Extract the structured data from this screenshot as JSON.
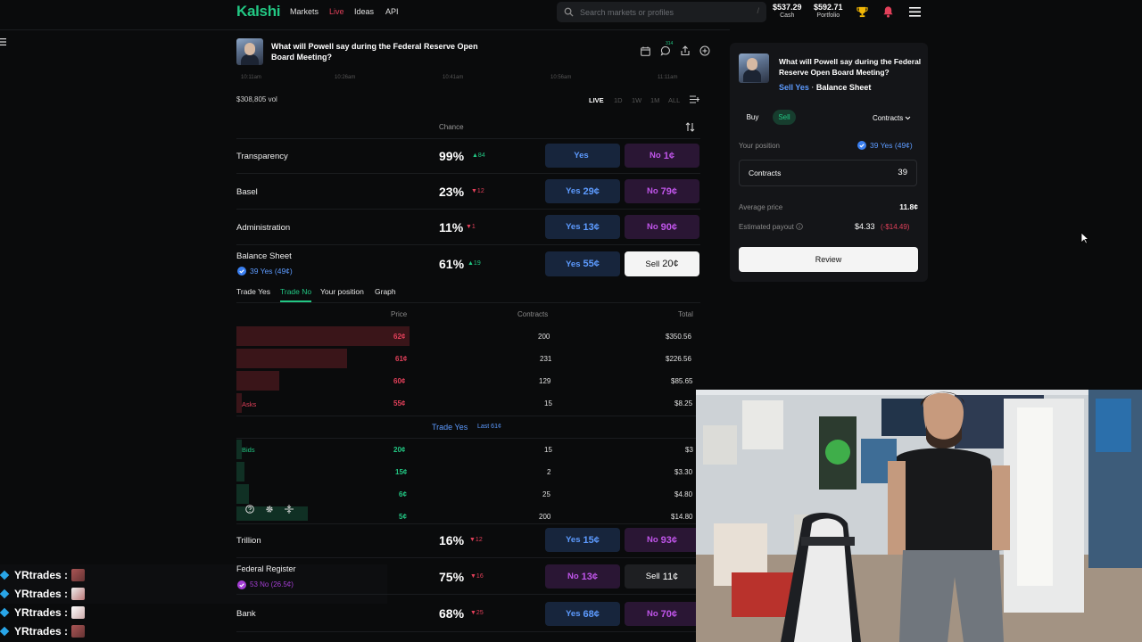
{
  "nav": {
    "logo": "Kalshi",
    "links": [
      {
        "label": "Markets"
      },
      {
        "label": "Live"
      },
      {
        "label": "Ideas"
      },
      {
        "label": "API"
      }
    ],
    "search_placeholder": "Search markets or profiles",
    "search_shortcut": "/",
    "cash_value": "$537.29",
    "cash_label": "Cash",
    "portfolio_value": "$592.71",
    "portfolio_label": "Portfolio"
  },
  "market": {
    "title": "What will Powell say during the Federal Reserve Open Board Meeting?",
    "axis_times": [
      "10:11am",
      "10:26am",
      "10:41am",
      "10:56am",
      "11:11am"
    ],
    "volume": "$308,805 vol",
    "ranges": [
      "LIVE",
      "1D",
      "1W",
      "1M",
      "ALL"
    ],
    "chance_header": "Chance",
    "comment_count": "314"
  },
  "outcomes": [
    {
      "name": "Transparency",
      "chance": "99%",
      "delta": "▲84",
      "dir": "up",
      "yes_label": "Yes",
      "yes_price": "",
      "no_label": "No",
      "no_price": "1¢"
    },
    {
      "name": "Basel",
      "chance": "23%",
      "delta": "▼12",
      "dir": "down",
      "yes_label": "Yes",
      "yes_price": "29¢",
      "no_label": "No",
      "no_price": "79¢"
    },
    {
      "name": "Administration",
      "chance": "11%",
      "delta": "▼1",
      "dir": "down",
      "yes_label": "Yes",
      "yes_price": "13¢",
      "no_label": "No",
      "no_price": "90¢"
    },
    {
      "name": "Balance Sheet",
      "position": "39 Yes (49¢)",
      "chance": "61%",
      "delta": "▲19",
      "dir": "up",
      "yes_label": "Yes",
      "yes_price": "55¢",
      "no_label": "Sell",
      "no_price": "20¢"
    }
  ],
  "tabs": [
    "Trade Yes",
    "Trade No",
    "Your position",
    "Graph"
  ],
  "orderbook": {
    "headers": {
      "price": "Price",
      "contracts": "Contracts",
      "total": "Total"
    },
    "asks_label": "Asks",
    "bids_label": "Bids",
    "asks": [
      {
        "price": "62¢",
        "contracts": "200",
        "total": "$350.56"
      },
      {
        "price": "61¢",
        "contracts": "231",
        "total": "$226.56"
      },
      {
        "price": "60¢",
        "contracts": "129",
        "total": "$85.65"
      },
      {
        "price": "55¢",
        "contracts": "15",
        "total": "$8.25"
      }
    ],
    "mid_label": "Trade Yes",
    "mid_last": "Last 61¢",
    "bids": [
      {
        "price": "20¢",
        "contracts": "15",
        "total": "$3"
      },
      {
        "price": "15¢",
        "contracts": "2",
        "total": "$3.30"
      },
      {
        "price": "6¢",
        "contracts": "25",
        "total": "$4.80"
      },
      {
        "price": "5¢",
        "contracts": "200",
        "total": "$14.80"
      }
    ]
  },
  "outcomes_below": [
    {
      "name": "Trillion",
      "chance": "16%",
      "delta": "▼12",
      "dir": "down",
      "yes_label": "Yes",
      "yes_price": "15¢",
      "no_label": "No",
      "no_price": "93¢"
    },
    {
      "name": "Federal Register",
      "position": "53 No (26.5¢)",
      "chance": "75%",
      "delta": "▼16",
      "dir": "down",
      "yes_label": "No",
      "yes_price": "13¢",
      "no_label": "Sell",
      "no_price": "11¢"
    },
    {
      "name": "Bank",
      "chance": "68%",
      "delta": "▼25",
      "dir": "down",
      "yes_label": "Yes",
      "yes_price": "68¢",
      "no_label": "No",
      "no_price": "70¢"
    }
  ],
  "panel": {
    "title": "What will Powell say during the Federal Reserve Open Board Meeting?",
    "subtitle_side": "Sell Yes",
    "subtitle_sep": "·",
    "subtitle_outcome": "Balance Sheet",
    "buy": "Buy",
    "sell": "Sell",
    "unit": "Contracts",
    "position_label": "Your position",
    "position_value": "39 Yes (49¢)",
    "contracts_label": "Contracts",
    "contracts_value": "39",
    "avg_label": "Average price",
    "avg_value": "11.8¢",
    "payout_label": "Estimated payout",
    "payout_value": "$4.33",
    "payout_loss": "(-$14.49)",
    "review": "Review"
  },
  "chat": [
    {
      "user": "YRtrades :"
    },
    {
      "user": "YRtrades :"
    },
    {
      "user": "YRtrades :"
    },
    {
      "user": "YRtrades :"
    }
  ],
  "colors": {
    "brand": "#22c783",
    "yes": "#5d9bff",
    "no": "#c055ea",
    "down": "#e2405a"
  }
}
